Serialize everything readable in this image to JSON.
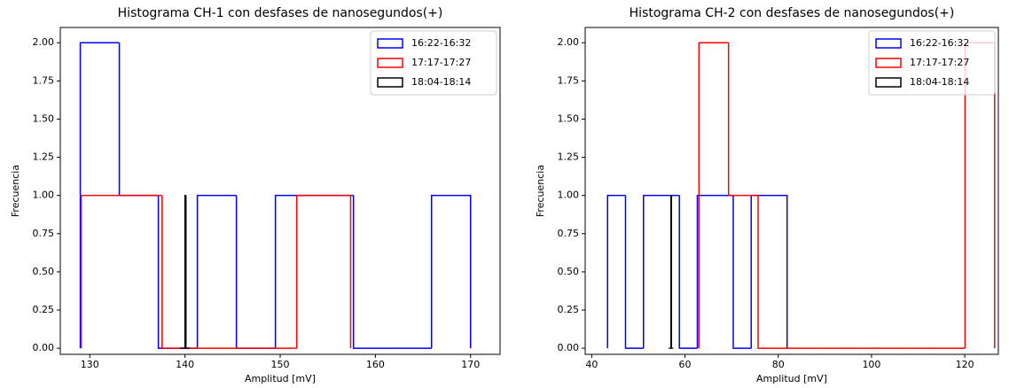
{
  "chart_data": [
    {
      "type": "histogram",
      "title": "Histograma CH-1 con desfases de nanosegundos(+)",
      "xlabel": "Amplitud [mV]",
      "ylabel": "Frecuencia",
      "xlim": [
        126.9,
        173.1
      ],
      "ylim": [
        -0.04,
        2.1
      ],
      "xticks": [
        130,
        140,
        150,
        160,
        170
      ],
      "yticks": [
        {
          "value": 0,
          "label": "0.00"
        },
        {
          "value": 0.25,
          "label": "0.25"
        },
        {
          "value": 0.5,
          "label": "0.50"
        },
        {
          "value": 0.75,
          "label": "0.75"
        },
        {
          "value": 1,
          "label": "1.00"
        },
        {
          "value": 1.25,
          "label": "1.25"
        },
        {
          "value": 1.5,
          "label": "1.50"
        },
        {
          "value": 1.75,
          "label": "1.75"
        },
        {
          "value": 2,
          "label": "2.00"
        }
      ],
      "legend": "upper right",
      "series": [
        {
          "name": "16:22-16:32",
          "color": "blue",
          "bins": [
            129,
            133.1,
            137.2,
            141.3,
            145.4,
            149.5,
            153.6,
            157.7,
            161.8,
            165.9,
            170
          ],
          "values": [
            2,
            1,
            0,
            1,
            0,
            1,
            1,
            0,
            0,
            1
          ]
        },
        {
          "name": "17:17-17:27",
          "color": "red",
          "bins": [
            129.1,
            131.93,
            134.76,
            137.59,
            140.42,
            143.25,
            146.08,
            148.91,
            151.74,
            154.57,
            157.4
          ],
          "values": [
            1,
            1,
            1,
            0,
            0,
            0,
            0,
            0,
            1,
            1
          ]
        },
        {
          "name": "18:04-18:14",
          "color": "black",
          "bins": [
            139.5,
            139.6,
            139.7,
            139.8,
            139.9,
            140.0,
            140.1,
            140.2,
            140.3,
            140.4,
            140.5
          ],
          "values": [
            0,
            0,
            0,
            0,
            0,
            1,
            0,
            0,
            0,
            0
          ]
        }
      ]
    },
    {
      "type": "histogram",
      "title": "Histograma CH-2 con desfases de nanosegundos(+)",
      "xlabel": "Amplitud [mV]",
      "ylabel": "Frecuencia",
      "xlim": [
        38.6,
        127.2
      ],
      "ylim": [
        -0.04,
        2.1
      ],
      "xticks": [
        40,
        60,
        80,
        100,
        120
      ],
      "yticks": [
        {
          "value": 0,
          "label": "0.00"
        },
        {
          "value": 0.25,
          "label": "0.25"
        },
        {
          "value": 0.5,
          "label": "0.50"
        },
        {
          "value": 0.75,
          "label": "0.75"
        },
        {
          "value": 1,
          "label": "1.00"
        },
        {
          "value": 1.25,
          "label": "1.25"
        },
        {
          "value": 1.5,
          "label": "1.50"
        },
        {
          "value": 1.75,
          "label": "1.75"
        },
        {
          "value": 2,
          "label": "2.00"
        }
      ],
      "legend": "upper right",
      "series": [
        {
          "name": "16:22-16:32",
          "color": "blue",
          "bins": [
            43.4,
            47.25,
            51.1,
            54.95,
            58.8,
            62.65,
            66.5,
            70.35,
            74.2,
            78.05,
            81.9
          ],
          "values": [
            1,
            0,
            1,
            1,
            0,
            1,
            1,
            0,
            1,
            1
          ]
        },
        {
          "name": "17:17-17:27",
          "color": "red",
          "bins": [
            63,
            69.34,
            75.68,
            82.02,
            88.36,
            94.7,
            101.04,
            107.38,
            113.72,
            120.06,
            126.4
          ],
          "values": [
            2,
            1,
            0,
            0,
            0,
            0,
            0,
            0,
            0,
            2
          ]
        },
        {
          "name": "18:04-18:14",
          "color": "black",
          "bins": [
            56.5,
            56.6,
            56.7,
            56.8,
            56.9,
            57.0,
            57.1,
            57.2,
            57.3,
            57.4,
            57.5
          ],
          "values": [
            0,
            0,
            0,
            0,
            0,
            1,
            0,
            0,
            0,
            0
          ]
        }
      ]
    }
  ]
}
